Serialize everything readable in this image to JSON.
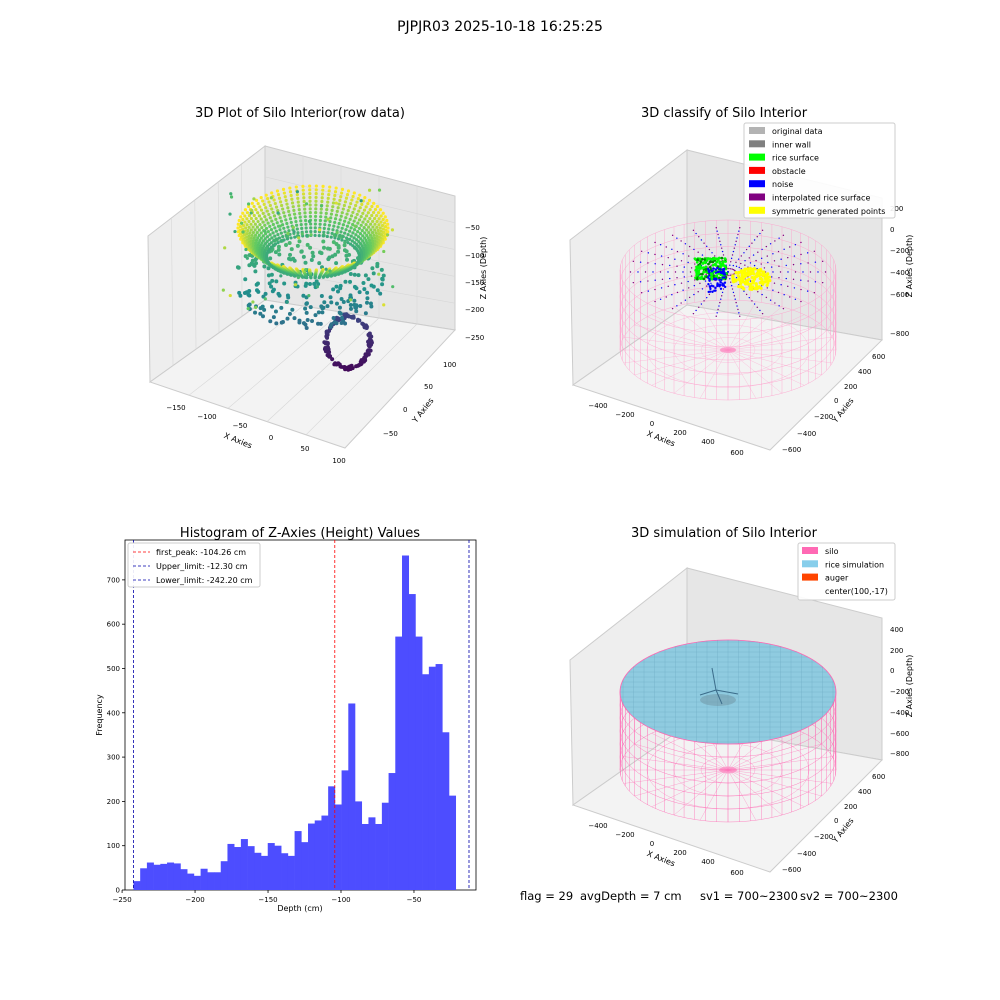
{
  "suptitle": "PJPJR03 2025-10-18 16:25:25",
  "footer": {
    "flag": "flag = 29",
    "avg_depth": "avgDepth = 7 cm",
    "sv1": "sv1 = 700~2300",
    "sv2": "sv2 = 700~2300"
  },
  "chart_data": [
    {
      "type": "scatter",
      "projection": "3d",
      "title": "3D Plot of Silo Interior(row data)",
      "xlabel": "X Axies",
      "ylabel": "Y Axies",
      "zlabel": "Z Axies (Depth)",
      "x_ticks": [
        "−150",
        "−100",
        "−50",
        "0",
        "50",
        "100"
      ],
      "y_ticks": [
        "−50",
        "0",
        "50",
        "100"
      ],
      "z_ticks": [
        "−50",
        "−100",
        "−150",
        "−200",
        "−250"
      ],
      "colormap": "viridis",
      "description_points": "funnel-shaped point cloud, depth from about -30 (yellow rim) to about -245 (purple bottom)"
    },
    {
      "type": "scatter",
      "projection": "3d",
      "title": "3D classify of Silo Interior",
      "xlabel": "X Axies",
      "ylabel": "Y Axies",
      "zlabel": "Z Axies (Depth)",
      "x_ticks": [
        "−400",
        "−200",
        "0",
        "200",
        "400",
        "600"
      ],
      "y_ticks": [
        "−600",
        "−400",
        "−200",
        "0",
        "200",
        "400",
        "600"
      ],
      "z_ticks": [
        "200",
        "0",
        "−200",
        "−400",
        "−600",
        "−800"
      ],
      "legend_position": "top-right",
      "legend": [
        {
          "label": "original data",
          "color": "#b3b3b3"
        },
        {
          "label": "inner wall",
          "color": "#808080"
        },
        {
          "label": "rice surface",
          "color": "#00ff00"
        },
        {
          "label": "obstacle",
          "color": "#ff0000"
        },
        {
          "label": "noise",
          "color": "#0000ff"
        },
        {
          "label": "interpolated rice surface",
          "color": "#800080"
        },
        {
          "label": "symmetric generated points",
          "color": "#ffff00"
        }
      ]
    },
    {
      "type": "bar",
      "title": "Histogram of Z-Axies (Height) Values",
      "xlabel": "Depth (cm)",
      "ylabel": "Frequency",
      "xlim": [
        -248,
        -7.5
      ],
      "ylim": [
        0,
        790
      ],
      "x_ticks": [
        -250,
        -200,
        -150,
        -100,
        -50
      ],
      "y_ticks": [
        0,
        100,
        200,
        300,
        400,
        500,
        600,
        700
      ],
      "bar_color": "#4d4dff",
      "bin_start": -242.2,
      "bin_width": 4.6,
      "values": [
        20,
        49,
        62,
        57,
        59,
        62,
        60,
        47,
        37,
        32,
        48,
        40,
        40,
        65,
        104,
        97,
        115,
        99,
        84,
        77,
        106,
        100,
        83,
        77,
        133,
        108,
        150,
        157,
        168,
        234,
        193,
        270,
        421,
        200,
        149,
        164,
        149,
        197,
        264,
        572,
        755,
        668,
        572,
        487,
        504,
        510,
        356,
        213
      ],
      "vlines": [
        {
          "label": "first_peak: -104.26 cm",
          "x": -104.26,
          "color": "#ff0000"
        },
        {
          "label": "Upper_limit: -12.30 cm",
          "x": -12.3,
          "color": "#0000aa"
        },
        {
          "label": "Lower_limit: -242.20 cm",
          "x": -242.2,
          "color": "#0000aa"
        }
      ],
      "legend_position": "top-left"
    },
    {
      "type": "scatter",
      "projection": "3d",
      "title": "3D simulation of Silo Interior",
      "xlabel": "X Axies",
      "ylabel": "Y Axies",
      "zlabel": "Z Axies (Depth)",
      "x_ticks": [
        "−400",
        "−200",
        "0",
        "200",
        "400",
        "600"
      ],
      "y_ticks": [
        "−600",
        "−400",
        "−200",
        "0",
        "200",
        "400",
        "600"
      ],
      "z_ticks": [
        "400",
        "200",
        "0",
        "−200",
        "−400",
        "−600",
        "−800"
      ],
      "legend_position": "top-right",
      "legend": [
        {
          "label": "silo",
          "color": "#ff69b4"
        },
        {
          "label": "rice simulation",
          "color": "#87ceeb"
        },
        {
          "label": "auger",
          "color": "#ff4500"
        },
        {
          "label": "center(100,-17)",
          "color": ""
        }
      ]
    }
  ]
}
